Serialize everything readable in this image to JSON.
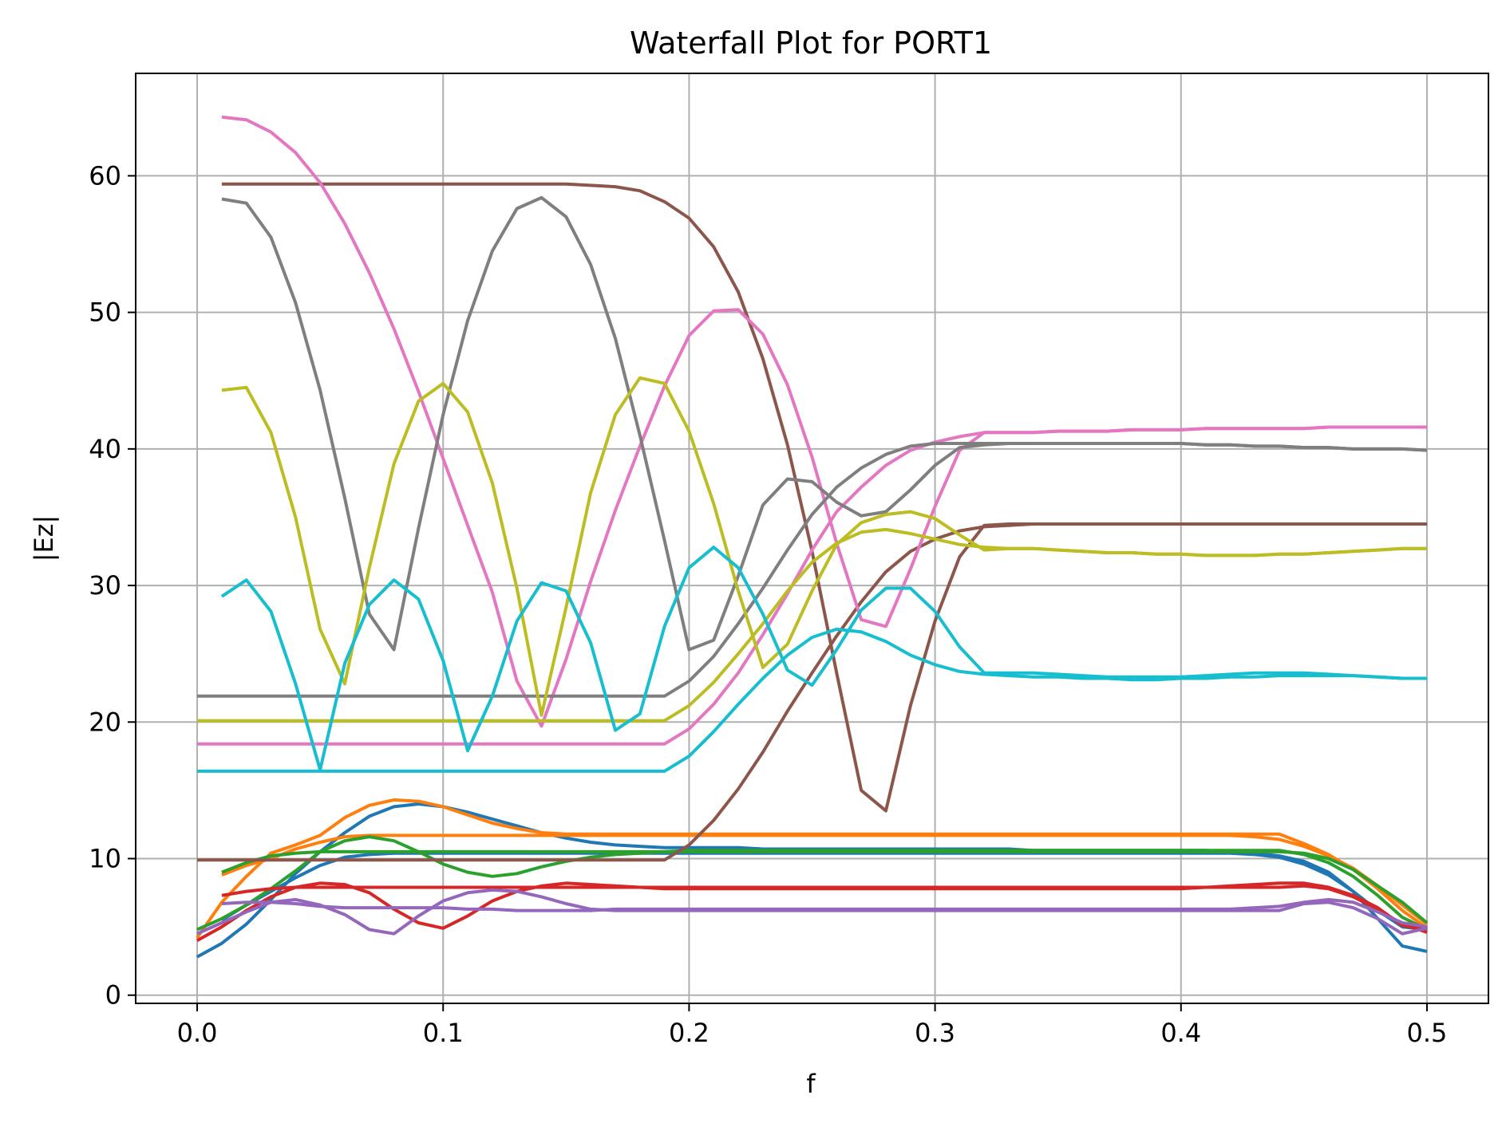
{
  "chart_data": {
    "type": "line",
    "title": "Waterfall Plot for PORT1",
    "xlabel": "f",
    "ylabel": "|Ez|",
    "xlim": [
      -0.025,
      0.525
    ],
    "ylim": [
      -0.6,
      67.5
    ],
    "xticks": [
      0.0,
      0.1,
      0.2,
      0.3,
      0.4,
      0.5
    ],
    "xtick_labels": [
      "0.0",
      "0.1",
      "0.2",
      "0.3",
      "0.4",
      "0.5"
    ],
    "yticks": [
      0,
      10,
      20,
      30,
      40,
      50,
      60
    ],
    "ytick_labels": [
      "0",
      "10",
      "20",
      "30",
      "40",
      "50",
      "60"
    ],
    "grid": true,
    "legend": "none",
    "x": [
      0.0,
      0.01,
      0.02,
      0.03,
      0.04,
      0.05,
      0.06,
      0.07,
      0.08,
      0.09,
      0.1,
      0.11,
      0.12,
      0.13,
      0.14,
      0.15,
      0.16,
      0.17,
      0.18,
      0.19,
      0.2,
      0.21,
      0.22,
      0.23,
      0.24,
      0.25,
      0.26,
      0.27,
      0.28,
      0.29,
      0.3,
      0.31,
      0.32,
      0.33,
      0.34,
      0.35,
      0.36,
      0.37,
      0.38,
      0.39,
      0.4,
      0.41,
      0.42,
      0.43,
      0.44,
      0.45,
      0.46,
      0.47,
      0.48,
      0.49,
      0.5
    ],
    "series": [
      {
        "color": "#1f77b4",
        "values": [
          2.8,
          3.8,
          5.2,
          7.0,
          8.9,
          10.5,
          11.9,
          13.1,
          13.8,
          14.0,
          13.8,
          13.4,
          12.9,
          12.4,
          11.9,
          11.5,
          11.2,
          11.0,
          10.9,
          10.8,
          10.8,
          10.8,
          10.8,
          10.7,
          10.7,
          10.7,
          10.7,
          10.7,
          10.7,
          10.7,
          10.7,
          10.7,
          10.7,
          10.7,
          10.6,
          10.6,
          10.6,
          10.6,
          10.6,
          10.6,
          10.6,
          10.6,
          10.5,
          10.4,
          10.2,
          9.8,
          9.0,
          7.6,
          5.6,
          3.6,
          3.2
        ]
      },
      {
        "color": "#1f77b4",
        "values": [
          4.5,
          5.5,
          6.6,
          7.6,
          8.6,
          9.5,
          10.1,
          10.3,
          10.4,
          10.4,
          10.4,
          10.4,
          10.4,
          10.4,
          10.4,
          10.4,
          10.4,
          10.4,
          10.4,
          10.4,
          10.4,
          10.4,
          10.4,
          10.4,
          10.4,
          10.4,
          10.4,
          10.4,
          10.4,
          10.4,
          10.4,
          10.4,
          10.4,
          10.4,
          10.4,
          10.4,
          10.4,
          10.4,
          10.4,
          10.4,
          10.4,
          10.4,
          10.4,
          10.3,
          10.1,
          9.6,
          8.8,
          7.6,
          6.2,
          5.0,
          4.8
        ]
      },
      {
        "color": "#ff7f0e",
        "values": [
          4.2,
          6.8,
          8.7,
          10.4,
          11.0,
          11.7,
          13.0,
          13.9,
          14.3,
          14.2,
          13.8,
          13.2,
          12.6,
          12.2,
          11.9,
          11.8,
          11.8,
          11.8,
          11.8,
          11.8,
          11.8,
          11.8,
          11.8,
          11.8,
          11.8,
          11.8,
          11.8,
          11.8,
          11.8,
          11.8,
          11.8,
          11.8,
          11.8,
          11.8,
          11.8,
          11.8,
          11.8,
          11.8,
          11.8,
          11.8,
          11.8,
          11.8,
          11.8,
          11.8,
          11.8,
          11.1,
          10.3,
          9.2,
          7.8,
          6.2,
          4.9
        ]
      },
      {
        "color": "#ff7f0e",
        "values": [
          8.2,
          8.8,
          9.5,
          10.0,
          10.7,
          11.2,
          11.6,
          11.7,
          11.7,
          11.7,
          11.7,
          11.7,
          11.7,
          11.7,
          11.7,
          11.7,
          11.7,
          11.7,
          11.7,
          11.7,
          11.7,
          11.7,
          11.7,
          11.7,
          11.7,
          11.7,
          11.7,
          11.7,
          11.7,
          11.7,
          11.7,
          11.7,
          11.7,
          11.7,
          11.7,
          11.7,
          11.7,
          11.7,
          11.7,
          11.7,
          11.7,
          11.7,
          11.7,
          11.6,
          11.4,
          10.9,
          10.2,
          9.3,
          8.0,
          6.6,
          5.2
        ]
      },
      {
        "color": "#2ca02c",
        "values": [
          4.8,
          5.6,
          6.6,
          7.8,
          9.1,
          10.5,
          11.3,
          11.6,
          11.3,
          10.5,
          9.6,
          9.0,
          8.7,
          8.9,
          9.4,
          9.8,
          10.1,
          10.3,
          10.4,
          10.5,
          10.6,
          10.6,
          10.6,
          10.6,
          10.6,
          10.6,
          10.6,
          10.6,
          10.6,
          10.6,
          10.6,
          10.6,
          10.6,
          10.6,
          10.6,
          10.6,
          10.6,
          10.6,
          10.6,
          10.6,
          10.6,
          10.6,
          10.6,
          10.6,
          10.6,
          10.3,
          9.7,
          8.7,
          7.3,
          5.7,
          4.8
        ]
      },
      {
        "color": "#2ca02c",
        "values": [
          8.3,
          9.0,
          9.7,
          10.2,
          10.4,
          10.5,
          10.5,
          10.5,
          10.5,
          10.5,
          10.5,
          10.5,
          10.5,
          10.5,
          10.5,
          10.5,
          10.5,
          10.5,
          10.5,
          10.5,
          10.5,
          10.5,
          10.5,
          10.5,
          10.5,
          10.5,
          10.5,
          10.5,
          10.5,
          10.5,
          10.5,
          10.5,
          10.5,
          10.5,
          10.5,
          10.5,
          10.5,
          10.5,
          10.5,
          10.5,
          10.5,
          10.5,
          10.5,
          10.5,
          10.5,
          10.4,
          10.0,
          9.2,
          8.0,
          6.8,
          5.3
        ]
      },
      {
        "color": "#d62728",
        "values": [
          4.0,
          5.0,
          6.2,
          7.2,
          7.9,
          8.2,
          8.1,
          7.5,
          6.3,
          5.3,
          4.9,
          5.8,
          6.9,
          7.6,
          8.0,
          8.2,
          8.1,
          8.0,
          7.9,
          7.8,
          7.8,
          7.8,
          7.8,
          7.8,
          7.8,
          7.8,
          7.8,
          7.8,
          7.8,
          7.8,
          7.8,
          7.8,
          7.8,
          7.8,
          7.8,
          7.8,
          7.8,
          7.8,
          7.8,
          7.8,
          7.8,
          7.9,
          8.0,
          8.1,
          8.2,
          8.2,
          7.9,
          7.3,
          6.4,
          5.1,
          4.8
        ]
      },
      {
        "color": "#d62728",
        "values": [
          6.9,
          7.3,
          7.6,
          7.8,
          7.9,
          7.9,
          7.9,
          7.9,
          7.9,
          7.9,
          7.9,
          7.9,
          7.9,
          7.9,
          7.9,
          7.9,
          7.9,
          7.9,
          7.9,
          7.9,
          7.9,
          7.9,
          7.9,
          7.9,
          7.9,
          7.9,
          7.9,
          7.9,
          7.9,
          7.9,
          7.9,
          7.9,
          7.9,
          7.9,
          7.9,
          7.9,
          7.9,
          7.9,
          7.9,
          7.9,
          7.9,
          7.9,
          7.9,
          7.9,
          7.9,
          8.0,
          7.8,
          7.2,
          6.3,
          5.2,
          4.6
        ]
      },
      {
        "color": "#9467bd",
        "values": [
          4.5,
          5.3,
          6.1,
          6.8,
          7.0,
          6.6,
          5.9,
          4.8,
          4.5,
          5.8,
          6.9,
          7.5,
          7.7,
          7.6,
          7.2,
          6.7,
          6.3,
          6.2,
          6.2,
          6.2,
          6.2,
          6.2,
          6.2,
          6.2,
          6.2,
          6.2,
          6.2,
          6.2,
          6.2,
          6.2,
          6.2,
          6.2,
          6.2,
          6.2,
          6.2,
          6.2,
          6.2,
          6.2,
          6.2,
          6.2,
          6.2,
          6.2,
          6.2,
          6.2,
          6.2,
          6.7,
          6.8,
          6.4,
          5.6,
          4.5,
          4.9
        ]
      },
      {
        "color": "#9467bd",
        "values": [
          6.6,
          6.7,
          6.8,
          6.8,
          6.7,
          6.5,
          6.4,
          6.4,
          6.4,
          6.4,
          6.4,
          6.3,
          6.3,
          6.2,
          6.2,
          6.2,
          6.2,
          6.3,
          6.3,
          6.3,
          6.3,
          6.3,
          6.3,
          6.3,
          6.3,
          6.3,
          6.3,
          6.3,
          6.3,
          6.3,
          6.3,
          6.3,
          6.3,
          6.3,
          6.3,
          6.3,
          6.3,
          6.3,
          6.3,
          6.3,
          6.3,
          6.3,
          6.3,
          6.4,
          6.5,
          6.8,
          7.0,
          6.8,
          6.1,
          5.3,
          5.0
        ]
      },
      {
        "color": "#8c564b",
        "values": [
          9.9,
          9.9,
          9.9,
          9.9,
          9.9,
          9.9,
          9.9,
          9.9,
          9.9,
          9.9,
          9.9,
          9.9,
          9.9,
          9.9,
          9.9,
          9.9,
          9.9,
          9.9,
          9.9,
          9.9,
          11.0,
          12.8,
          15.1,
          17.8,
          20.8,
          23.6,
          26.3,
          28.8,
          31.0,
          32.5,
          33.4,
          34.0,
          34.3,
          34.4,
          34.5,
          34.5,
          34.5,
          34.5,
          34.5,
          34.5,
          34.5,
          34.5,
          34.5,
          34.5,
          34.5,
          34.5,
          34.5,
          34.5,
          34.5,
          34.5,
          34.5
        ]
      },
      {
        "color": "#8c564b",
        "values": [
          59.4,
          59.4,
          59.4,
          59.4,
          59.4,
          59.4,
          59.4,
          59.4,
          59.4,
          59.4,
          59.4,
          59.4,
          59.4,
          59.4,
          59.4,
          59.4,
          59.3,
          59.2,
          58.9,
          58.1,
          56.9,
          54.8,
          51.5,
          46.6,
          40.3,
          32.5,
          23.6,
          15.0,
          13.5,
          21.2,
          27.4,
          32.1,
          34.4,
          34.5,
          34.5,
          34.5,
          34.5,
          34.5,
          34.5,
          34.5,
          34.5,
          34.5,
          34.5,
          34.5,
          34.5,
          34.5,
          34.5,
          34.5,
          34.5,
          34.5,
          34.5
        ]
      },
      {
        "color": "#e377c2",
        "values": [
          18.4,
          18.4,
          18.4,
          18.4,
          18.4,
          18.4,
          18.4,
          18.4,
          18.4,
          18.4,
          18.4,
          18.4,
          18.4,
          18.4,
          18.4,
          18.4,
          18.4,
          18.4,
          18.4,
          18.4,
          19.5,
          21.3,
          23.6,
          26.4,
          29.4,
          32.6,
          35.4,
          37.2,
          38.8,
          39.9,
          40.5,
          40.9,
          41.2,
          41.2,
          41.2,
          41.3,
          41.3,
          41.3,
          41.4,
          41.4,
          41.4,
          41.5,
          41.5,
          41.5,
          41.5,
          41.5,
          41.6,
          41.6,
          41.6,
          41.6,
          41.6
        ]
      },
      {
        "color": "#e377c2",
        "values": [
          64.3,
          64.3,
          64.1,
          63.2,
          61.7,
          59.5,
          56.5,
          52.9,
          48.8,
          44.2,
          39.3,
          34.4,
          29.5,
          23.0,
          19.7,
          24.6,
          30.3,
          35.5,
          40.2,
          44.6,
          48.3,
          50.1,
          50.2,
          48.4,
          44.7,
          39.4,
          33.1,
          27.5,
          27.0,
          31.2,
          35.8,
          39.9,
          41.2,
          41.2,
          41.2,
          41.3,
          41.3,
          41.3,
          41.4,
          41.4,
          41.4,
          41.5,
          41.5,
          41.5,
          41.5,
          41.5,
          41.6,
          41.6,
          41.6,
          41.6,
          41.6
        ]
      },
      {
        "color": "#7f7f7f",
        "values": [
          21.9,
          21.9,
          21.9,
          21.9,
          21.9,
          21.9,
          21.9,
          21.9,
          21.9,
          21.9,
          21.9,
          21.9,
          21.9,
          21.9,
          21.9,
          21.9,
          21.9,
          21.9,
          21.9,
          21.9,
          23.0,
          24.8,
          27.2,
          29.8,
          32.6,
          35.2,
          37.2,
          38.6,
          39.6,
          40.2,
          40.4,
          40.4,
          40.4,
          40.4,
          40.4,
          40.4,
          40.4,
          40.4,
          40.4,
          40.4,
          40.4,
          40.3,
          40.3,
          40.2,
          40.2,
          40.1,
          40.1,
          40.0,
          40.0,
          40.0,
          39.9
        ]
      },
      {
        "color": "#7f7f7f",
        "values": [
          58.3,
          58.3,
          58.0,
          55.5,
          50.7,
          44.3,
          36.4,
          27.9,
          25.3,
          34.2,
          42.5,
          49.4,
          54.5,
          57.6,
          58.4,
          57.0,
          53.5,
          48.1,
          41.0,
          33.3,
          25.3,
          26.0,
          30.7,
          35.9,
          37.8,
          37.6,
          36.1,
          35.1,
          35.4,
          37.0,
          38.8,
          40.1,
          40.3,
          40.4,
          40.4,
          40.4,
          40.4,
          40.4,
          40.4,
          40.4,
          40.4,
          40.3,
          40.3,
          40.2,
          40.2,
          40.1,
          40.1,
          40.0,
          40.0,
          40.0,
          39.9
        ]
      },
      {
        "color": "#bcbd22",
        "values": [
          20.1,
          20.1,
          20.1,
          20.1,
          20.1,
          20.1,
          20.1,
          20.1,
          20.1,
          20.1,
          20.1,
          20.1,
          20.1,
          20.1,
          20.1,
          20.1,
          20.1,
          20.1,
          20.1,
          20.1,
          21.2,
          22.9,
          25.0,
          27.2,
          29.6,
          31.7,
          33.1,
          33.9,
          34.1,
          33.8,
          33.4,
          33.0,
          32.8,
          32.7,
          32.7,
          32.6,
          32.5,
          32.4,
          32.4,
          32.3,
          32.3,
          32.2,
          32.2,
          32.2,
          32.3,
          32.3,
          32.4,
          32.5,
          32.6,
          32.7,
          32.7
        ]
      },
      {
        "color": "#bcbd22",
        "values": [
          44.3,
          44.3,
          44.5,
          41.2,
          35.0,
          26.8,
          22.8,
          31.3,
          38.9,
          43.5,
          44.8,
          42.7,
          37.5,
          29.8,
          20.5,
          28.4,
          36.8,
          42.5,
          45.2,
          44.8,
          41.3,
          36.0,
          29.6,
          24.0,
          25.7,
          29.6,
          33.0,
          34.6,
          35.2,
          35.4,
          34.9,
          33.7,
          32.6,
          32.7,
          32.7,
          32.6,
          32.5,
          32.4,
          32.4,
          32.3,
          32.3,
          32.2,
          32.2,
          32.2,
          32.3,
          32.3,
          32.4,
          32.5,
          32.6,
          32.7,
          32.7
        ]
      },
      {
        "color": "#17becf",
        "values": [
          16.4,
          16.4,
          16.4,
          16.4,
          16.4,
          16.4,
          16.4,
          16.4,
          16.4,
          16.4,
          16.4,
          16.4,
          16.4,
          16.4,
          16.4,
          16.4,
          16.4,
          16.4,
          16.4,
          16.4,
          17.5,
          19.3,
          21.3,
          23.2,
          24.9,
          26.2,
          26.8,
          26.6,
          25.9,
          24.9,
          24.2,
          23.7,
          23.5,
          23.4,
          23.3,
          23.3,
          23.2,
          23.2,
          23.1,
          23.1,
          23.2,
          23.2,
          23.3,
          23.3,
          23.4,
          23.4,
          23.4,
          23.4,
          23.3,
          23.2,
          23.2
        ]
      },
      {
        "color": "#17becf",
        "values": [
          29.2,
          29.2,
          30.4,
          28.1,
          22.8,
          16.5,
          24.3,
          28.6,
          30.4,
          29.0,
          24.5,
          17.9,
          21.9,
          27.4,
          30.2,
          29.6,
          25.8,
          19.4,
          20.6,
          27.0,
          31.3,
          32.8,
          31.3,
          27.9,
          23.8,
          22.7,
          25.3,
          28.2,
          29.8,
          29.8,
          28.1,
          25.5,
          23.6,
          23.6,
          23.6,
          23.5,
          23.4,
          23.3,
          23.3,
          23.3,
          23.3,
          23.4,
          23.5,
          23.6,
          23.6,
          23.6,
          23.5,
          23.4,
          23.3,
          23.2,
          23.2
        ]
      }
    ]
  }
}
